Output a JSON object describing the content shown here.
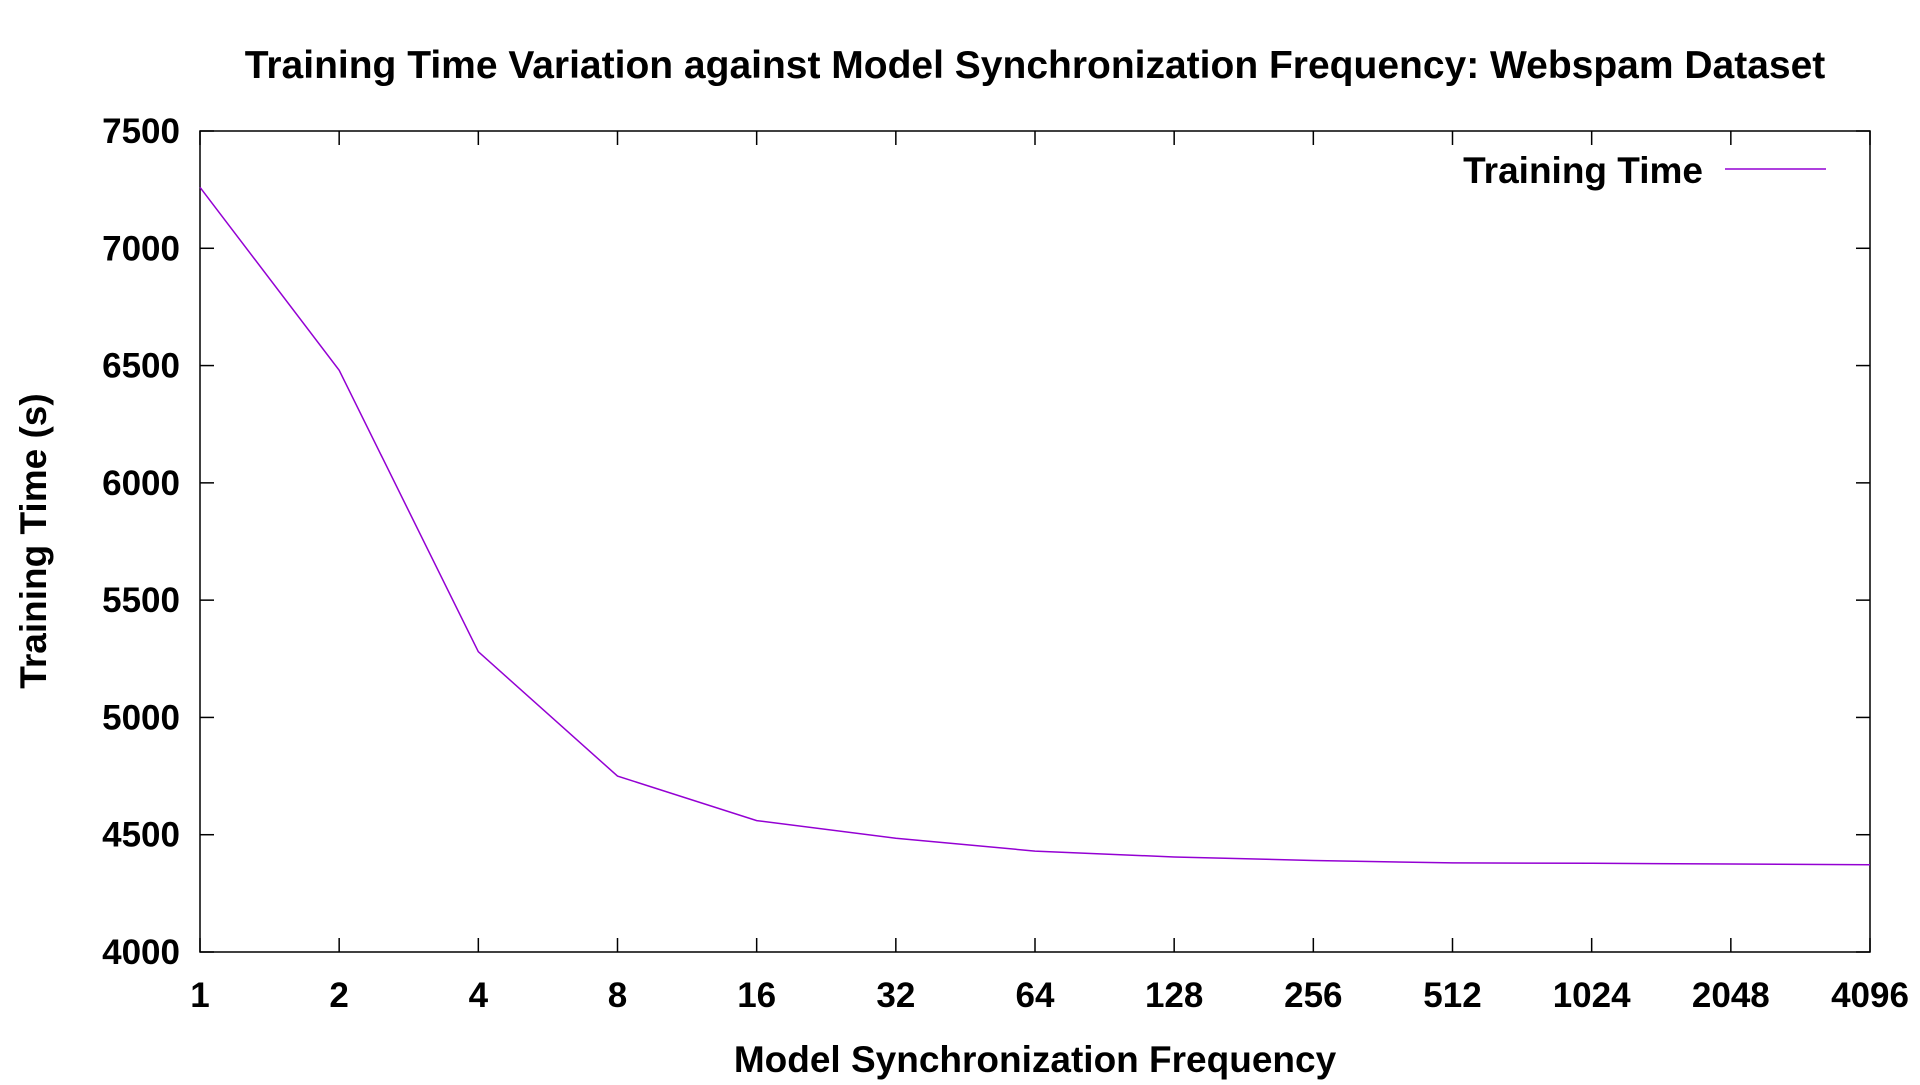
{
  "chart_data": {
    "type": "line",
    "title": "Training Time Variation against Model Synchronization Frequency: Webspam Dataset",
    "xlabel": "Model Synchronization Frequency",
    "ylabel": "Training Time (s)",
    "x_scale": "log2",
    "x": [
      1,
      2,
      4,
      8,
      16,
      32,
      64,
      128,
      256,
      512,
      1024,
      2048,
      4096
    ],
    "x_tick_labels": [
      "1",
      "2",
      "4",
      "8",
      "16",
      "32",
      "64",
      "128",
      "256",
      "512",
      "1024",
      "2048",
      "4096"
    ],
    "y_ticks": [
      "4000",
      "4500",
      "5000",
      "5500",
      "6000",
      "6500",
      "7000",
      "7500"
    ],
    "ylim": [
      4000,
      7500
    ],
    "xlim": [
      1,
      4096
    ],
    "series": [
      {
        "name": "Training Time",
        "values": [
          7260,
          6480,
          5280,
          4750,
          4560,
          4485,
          4430,
          4405,
          4390,
          4380,
          4378,
          4375,
          4372
        ],
        "color": "#9400d3"
      }
    ],
    "legend_position": "top-right",
    "grid": false
  }
}
